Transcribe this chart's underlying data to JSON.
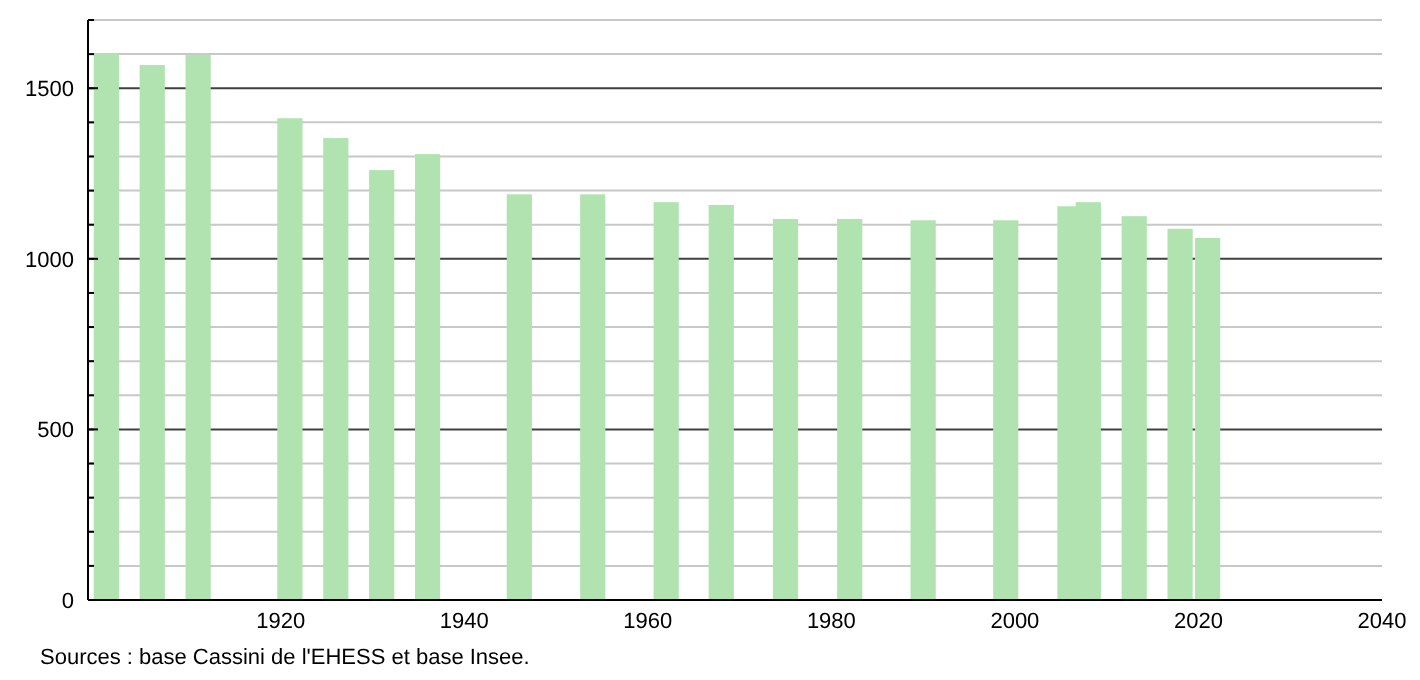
{
  "chart_data": {
    "type": "bar",
    "x": [
      1901,
      1906,
      1911,
      1921,
      1926,
      1931,
      1936,
      1946,
      1954,
      1962,
      1968,
      1975,
      1982,
      1990,
      1999,
      2006,
      2008,
      2013,
      2018,
      2021
    ],
    "values": [
      1603,
      1568,
      1598,
      1412,
      1354,
      1260,
      1307,
      1189,
      1189,
      1166,
      1158,
      1117,
      1117,
      1113,
      1113,
      1154,
      1166,
      1125,
      1088,
      1061
    ],
    "color": "#b0e3b0",
    "xlim": [
      1899,
      2040
    ],
    "xticks": [
      1920,
      1940,
      1960,
      1980,
      2000,
      2020,
      2040
    ],
    "ylim": [
      0,
      1700
    ],
    "yticks": [
      0,
      {
        "value": 100,
        "label": null
      },
      {
        "value": 200,
        "label": null
      },
      {
        "value": 300,
        "label": null
      },
      {
        "value": 400,
        "label": null
      },
      500,
      {
        "value": 600,
        "label": null
      },
      {
        "value": 700,
        "label": null
      },
      {
        "value": 800,
        "label": null
      },
      {
        "value": 900,
        "label": null
      },
      1000,
      {
        "value": 1100,
        "label": null
      },
      {
        "value": 1200,
        "label": null
      },
      {
        "value": 1300,
        "label": null
      },
      {
        "value": 1400,
        "label": null
      },
      1500,
      {
        "value": 1600,
        "label": null
      },
      {
        "value": 1700,
        "label": null
      }
    ],
    "grid": "y",
    "annotations": [
      "Sources : base Cassini de l'EHESS et base Insee."
    ]
  }
}
